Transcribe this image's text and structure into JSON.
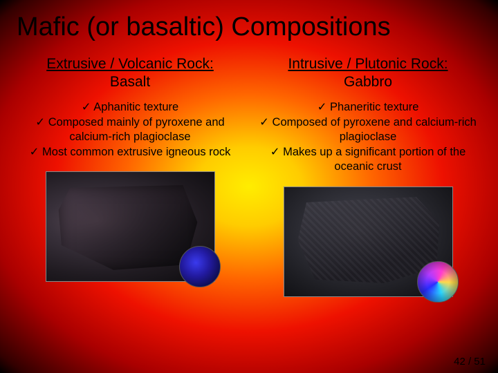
{
  "title": "Mafic (or basaltic) Compositions",
  "left": {
    "heading": "Extrusive / Volcanic Rock:",
    "name": "Basalt",
    "bullets": [
      "Aphanitic texture",
      "Composed mainly of pyroxene and calcium-rich plagioclase",
      "Most common extrusive igneous rock"
    ]
  },
  "right": {
    "heading": "Intrusive / Plutonic Rock:",
    "name": "Gabbro",
    "bullets": [
      "Phaneritic texture",
      "Composed of pyroxene and calcium-rich plagioclase",
      "Makes up a significant portion of the oceanic crust"
    ]
  },
  "check": "✓",
  "pager": "42 / 51",
  "colors": {
    "text": "#000000"
  }
}
